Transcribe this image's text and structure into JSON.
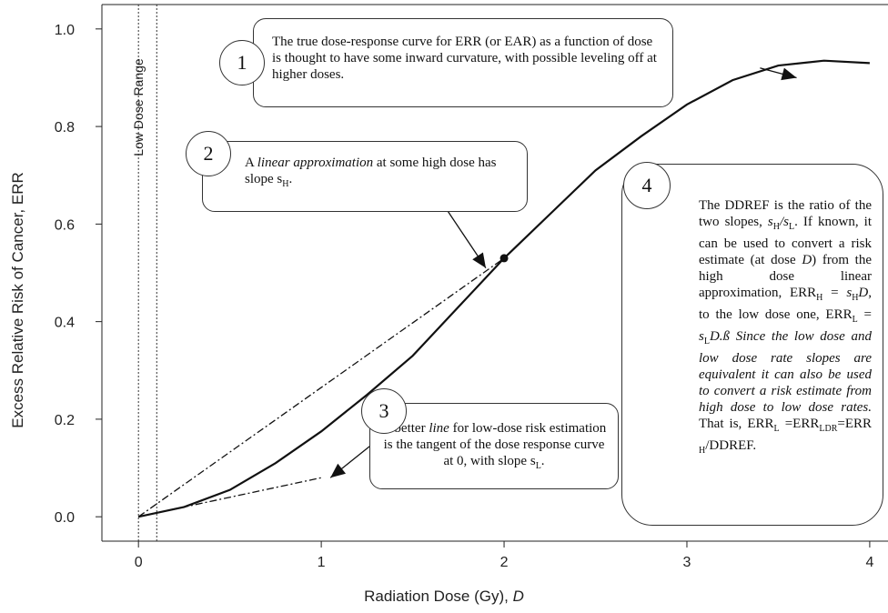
{
  "chart_data": {
    "type": "line",
    "xlabel": "Radiation Dose (Gy), D",
    "ylabel": "Excess Relative Risk of Cancer, ERR",
    "xlim": [
      -0.2,
      4.1
    ],
    "ylim": [
      -0.05,
      1.05
    ],
    "x_ticks": [
      "0",
      "1",
      "2",
      "3",
      "4"
    ],
    "y_ticks": [
      "0.0",
      "0.2",
      "0.4",
      "0.6",
      "0.8",
      "1.0"
    ],
    "low_dose_range_label": "Low Dose Range",
    "low_dose_range_x": [
      0,
      0.1
    ],
    "series": [
      {
        "style": "solid",
        "x": [
          0,
          0.25,
          0.5,
          0.75,
          1.0,
          1.25,
          1.5,
          1.75,
          2.0,
          2.25,
          2.5,
          2.75,
          3.0,
          3.25,
          3.5,
          3.75,
          4.0
        ],
        "y": [
          0,
          0.02,
          0.055,
          0.11,
          0.175,
          0.25,
          0.33,
          0.43,
          0.53,
          0.62,
          0.71,
          0.78,
          0.845,
          0.895,
          0.925,
          0.935,
          0.93
        ]
      },
      {
        "style": "dash-dot",
        "x": [
          0,
          2.0
        ],
        "y": [
          0,
          0.53
        ]
      },
      {
        "style": "dash-dot",
        "x": [
          0,
          1.0
        ],
        "y": [
          0,
          0.08
        ]
      }
    ],
    "point": {
      "x": 2.0,
      "y": 0.53
    },
    "arrows": [
      {
        "from": [
          3.4,
          0.92
        ],
        "to": [
          3.6,
          0.9
        ]
      },
      {
        "from": [
          1.65,
          0.65
        ],
        "to": [
          1.9,
          0.51
        ]
      },
      {
        "from": [
          1.35,
          0.17
        ],
        "to": [
          1.05,
          0.08
        ]
      }
    ]
  },
  "callouts": {
    "c1": {
      "number": "1",
      "text": "The true dose-response curve for ERR (or EAR) as a function of dose is thought to have some inward curvature, with possible leveling off at higher doses."
    },
    "c2": {
      "number": "2",
      "t1": "A ",
      "em": "linear approximation",
      "t2": " at some high dose has slope s",
      "sub": "H",
      "t3": "."
    },
    "c3": {
      "number": "3",
      "t1": "A better ",
      "em": "line",
      "t2": " for low-dose risk estimation is the tangent of the dose response curve at 0, with slope s",
      "sub": "L",
      "t3": "."
    },
    "c4": {
      "number": "4",
      "p1": "The DDREF is the ratio of the two slopes, ",
      "p1_math": "s",
      "p1_sub_h": "H",
      "p1_mid": "/s",
      "p1_sub_l": "L",
      "p1_end": ". If known, it can be used to convert a risk estimate (at dose ",
      "p1_d": "D",
      "p2": ") from the high dose linear approximation, ERR",
      "p2_sub_h": "H",
      "p2_eq": " = ",
      "p2_sh": "s",
      "p2_sh_sub": "H",
      "p2_d": "D",
      "p2_mid": ", to the low dose one, ERR",
      "p2_sub_l": "L",
      "p2_eq2": " = ",
      "p2_sl": "s",
      "p2_sl_sub": "L",
      "p2_d2": "D.ß",
      "p3_em": " Since the low dose and low dose rate slopes are equivalent it can also be used to convert a risk estimate from high dose to low dose rates.",
      "p4": " That is, ERR",
      "p4_sub_l": "L",
      "p4_eq": " =ERR",
      "p4_sub_ldr": "LDR",
      "p4_eq2": "=ERR",
      "p4_sub_h": " H",
      "p4_end": "/DDREF."
    }
  }
}
